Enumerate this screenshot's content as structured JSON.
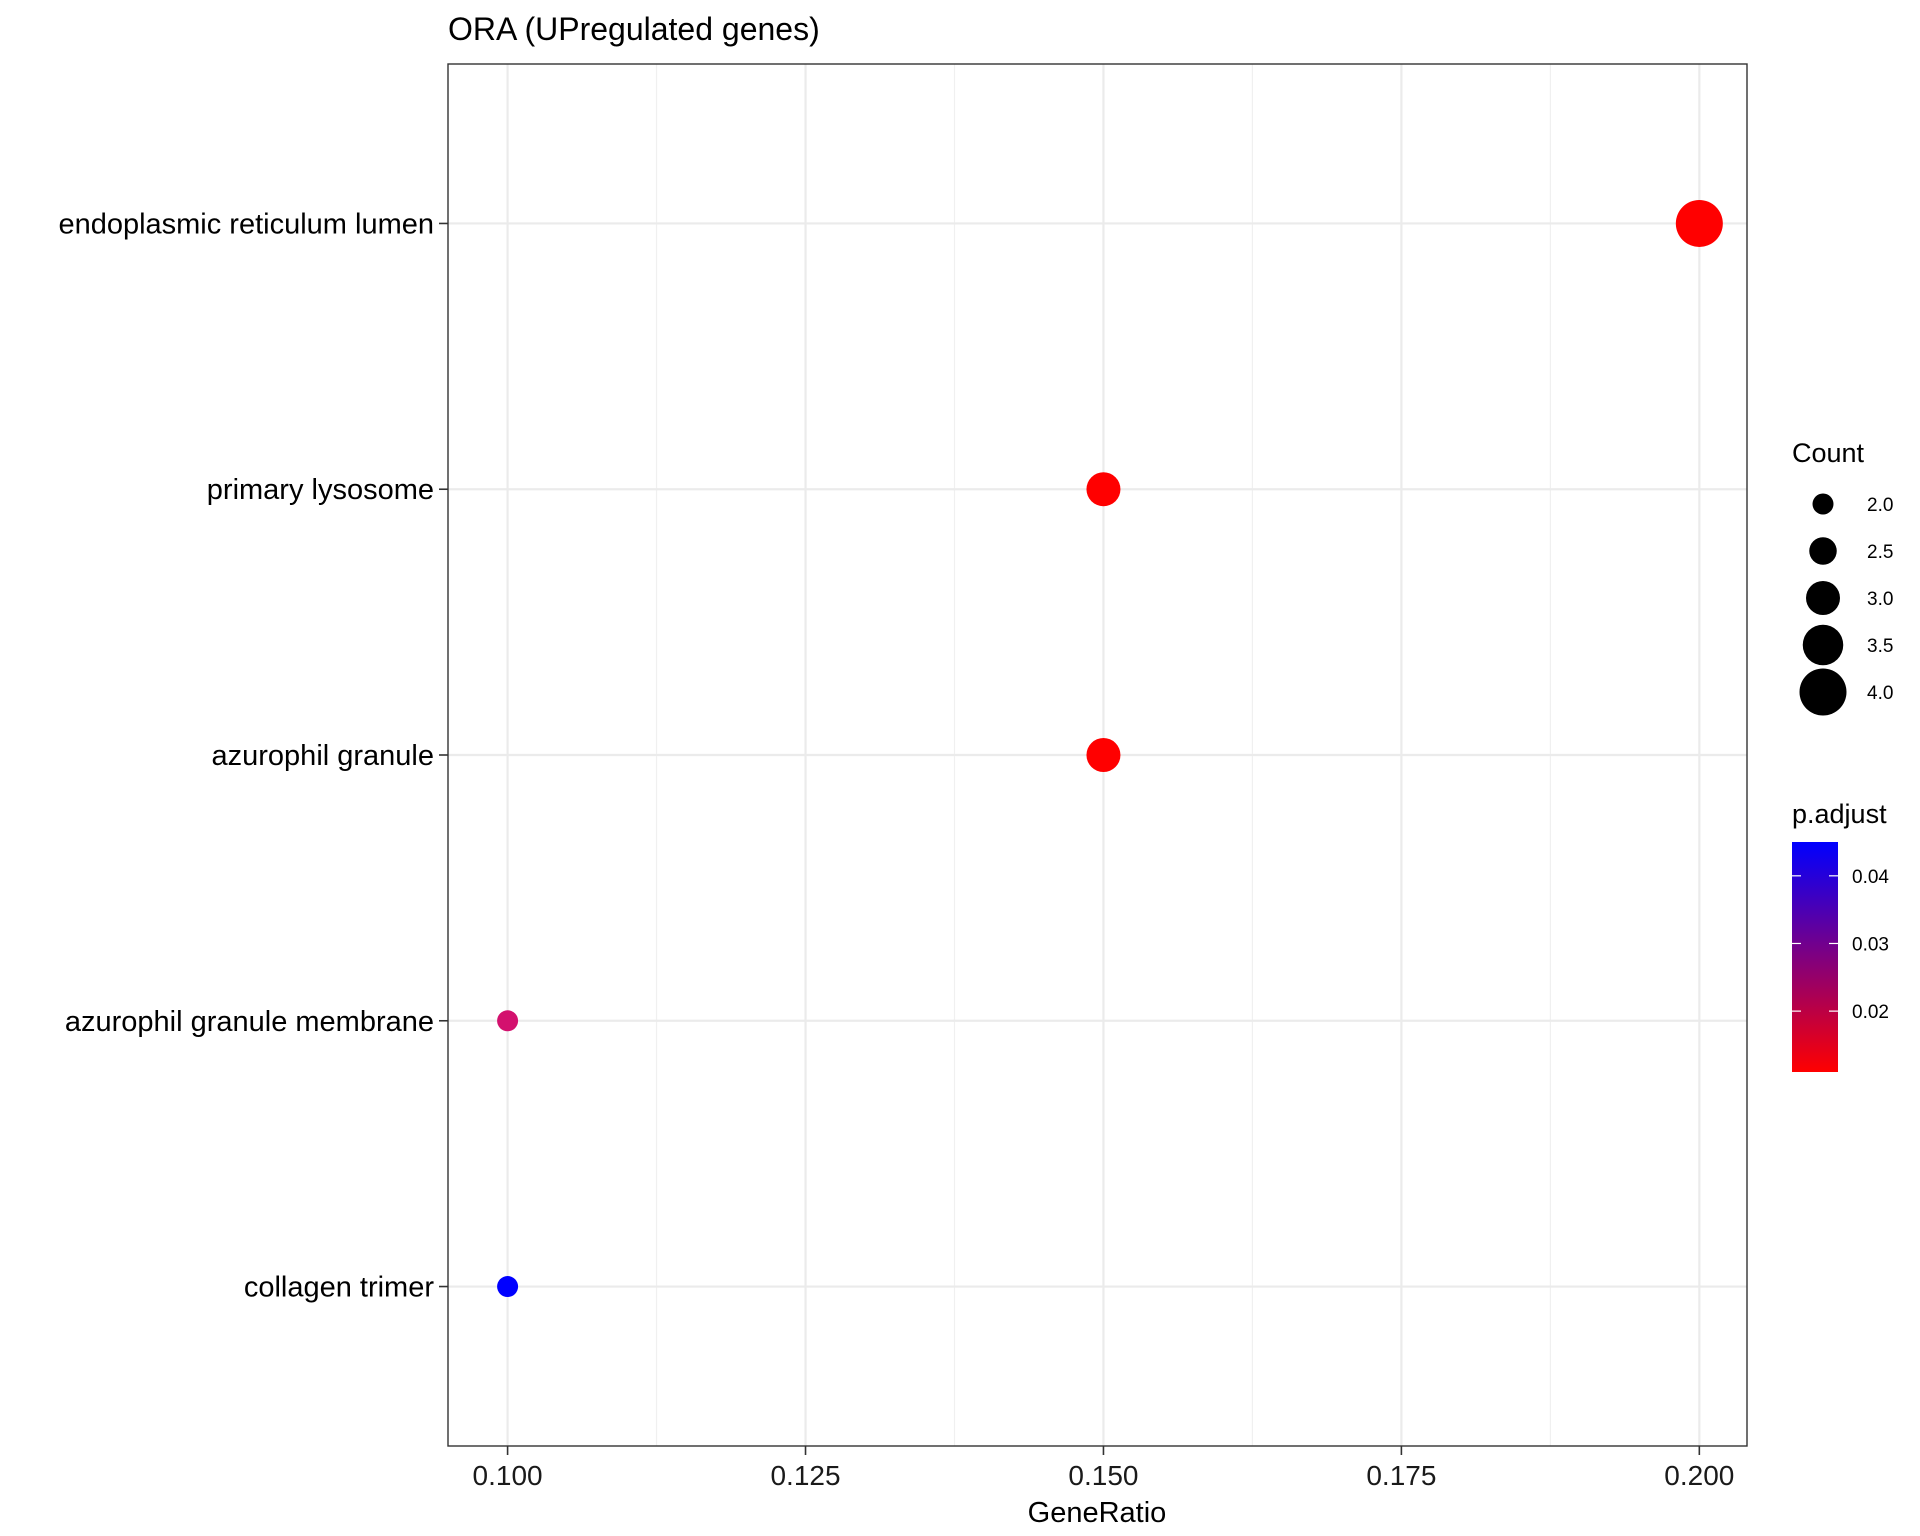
{
  "chart_data": {
    "type": "scatter",
    "title": "ORA (UPregulated genes)",
    "xlabel": "GeneRatio",
    "ylabel": "",
    "xlim": [
      0.095,
      0.204
    ],
    "xticks": [
      "0.100",
      "0.125",
      "0.150",
      "0.175",
      "0.200"
    ],
    "grid": true,
    "categories": [
      "endoplasmic reticulum lumen",
      "primary lysosome",
      "azurophil granule",
      "azurophil granule membrane",
      "collagen trimer"
    ],
    "points": [
      {
        "term": "endoplasmic reticulum lumen",
        "GeneRatio": 0.2,
        "Count": 4,
        "p_adjust": 0.011,
        "color": "#ff0000"
      },
      {
        "term": "primary lysosome",
        "GeneRatio": 0.15,
        "Count": 3,
        "p_adjust": 0.011,
        "color": "#ff0000"
      },
      {
        "term": "azurophil granule",
        "GeneRatio": 0.15,
        "Count": 3,
        "p_adjust": 0.011,
        "color": "#ff0000"
      },
      {
        "term": "azurophil granule membrane",
        "GeneRatio": 0.1,
        "Count": 2,
        "p_adjust": 0.025,
        "color": "#d3116e"
      },
      {
        "term": "collagen trimer",
        "GeneRatio": 0.1,
        "Count": 2,
        "p_adjust": 0.045,
        "color": "#0000ff"
      }
    ],
    "legend_size": {
      "title": "Count",
      "values": [
        2.0,
        2.5,
        3.0,
        3.5,
        4.0
      ],
      "labels": [
        "2.0",
        "2.5",
        "3.0",
        "3.5",
        "4.0"
      ]
    },
    "legend_color": {
      "title": "p.adjust",
      "low_color": "#ff0000",
      "high_color": "#0000ff",
      "range": [
        0.011,
        0.045
      ],
      "ticks": [
        0.02,
        0.03,
        0.04
      ],
      "tick_labels": [
        "0.02",
        "0.03",
        "0.04"
      ]
    },
    "legend_placement": "right"
  }
}
